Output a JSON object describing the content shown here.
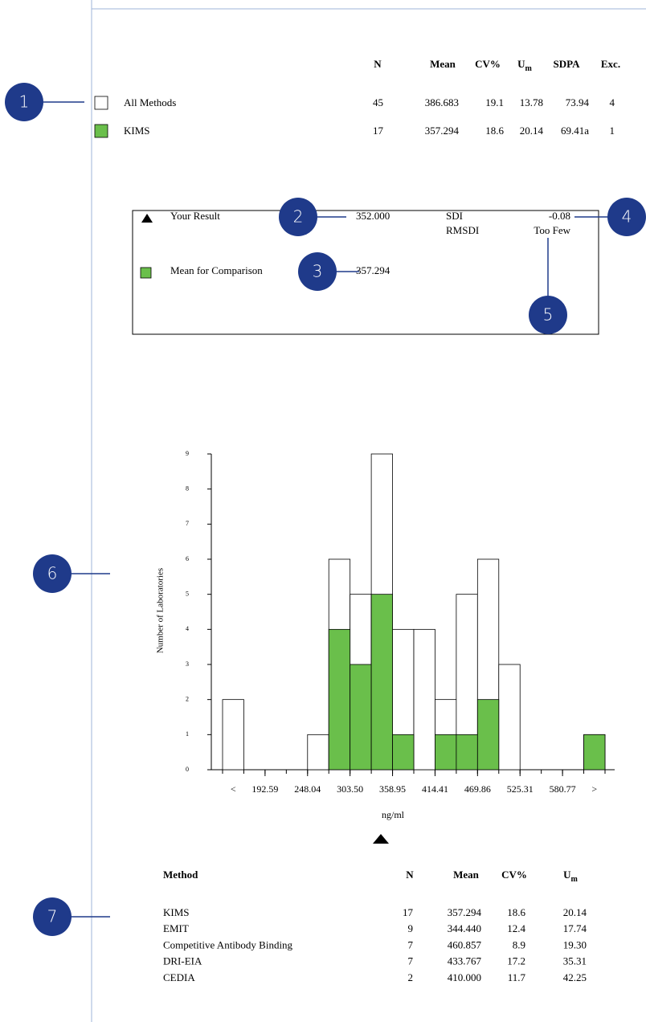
{
  "callouts": [
    "1",
    "2",
    "3",
    "4",
    "5",
    "6",
    "7"
  ],
  "top_table": {
    "headers": [
      "N",
      "Mean",
      "CV%",
      {
        "main": "U",
        "sub": "m"
      },
      "SDPA",
      "Exc."
    ],
    "rows": [
      {
        "label": "All Methods",
        "cells": [
          "45",
          "386.683",
          "19.1",
          "13.78",
          "73.94",
          "4"
        ]
      },
      {
        "label": "KIMS",
        "cells": [
          "17",
          "357.294",
          "18.6",
          "20.14",
          "69.41a",
          "1"
        ]
      }
    ]
  },
  "result_box": {
    "your_result_label": "Your Result",
    "your_result": "352.000",
    "mean_label": "Mean for Comparison",
    "mean_value": "357.294",
    "sdi_label": "SDI",
    "sdi_value": "-0.08",
    "rmsdi_label": "RMSDI",
    "rmsdi_value": "Too Few"
  },
  "chart_data": {
    "type": "histogram",
    "ylabel": "Number of Laboratories",
    "xlabel": "ng/ml",
    "series": [
      {
        "color": "#ffffff",
        "values": [
          2,
          0,
          0,
          0,
          1,
          6,
          5,
          9,
          4,
          4,
          2,
          5,
          6,
          3,
          0,
          0,
          0,
          1
        ]
      },
      {
        "color": "#6abf4b",
        "values": [
          0,
          0,
          0,
          0,
          0,
          4,
          3,
          5,
          1,
          0,
          1,
          1,
          2,
          0,
          0,
          0,
          0,
          1
        ]
      }
    ],
    "xticks": [
      "<",
      192.59,
      248.04,
      {
        "value": 303.5,
        "label": "303.50"
      },
      358.95,
      414.41,
      469.86,
      525.31,
      580.77,
      ">"
    ],
    "ylim": [
      0,
      9
    ],
    "yticks": [
      0,
      1,
      2,
      3,
      4,
      5,
      6,
      7,
      8,
      9
    ]
  },
  "method_table": {
    "headers": [
      "Method",
      "N",
      "Mean",
      "CV%",
      {
        "main": "U",
        "sub": "m"
      }
    ],
    "rows": [
      [
        "KIMS",
        "17",
        "357.294",
        "18.6",
        "20.14"
      ],
      [
        "EMIT",
        "9",
        "344.440",
        "12.4",
        "17.74"
      ],
      [
        "Competitive Antibody Binding",
        "7",
        "460.857",
        "8.9",
        "19.30"
      ],
      [
        "DRI-EIA",
        "7",
        "433.767",
        "17.2",
        "35.31"
      ],
      [
        "CEDIA",
        "2",
        "410.000",
        "11.7",
        "42.25"
      ]
    ]
  }
}
